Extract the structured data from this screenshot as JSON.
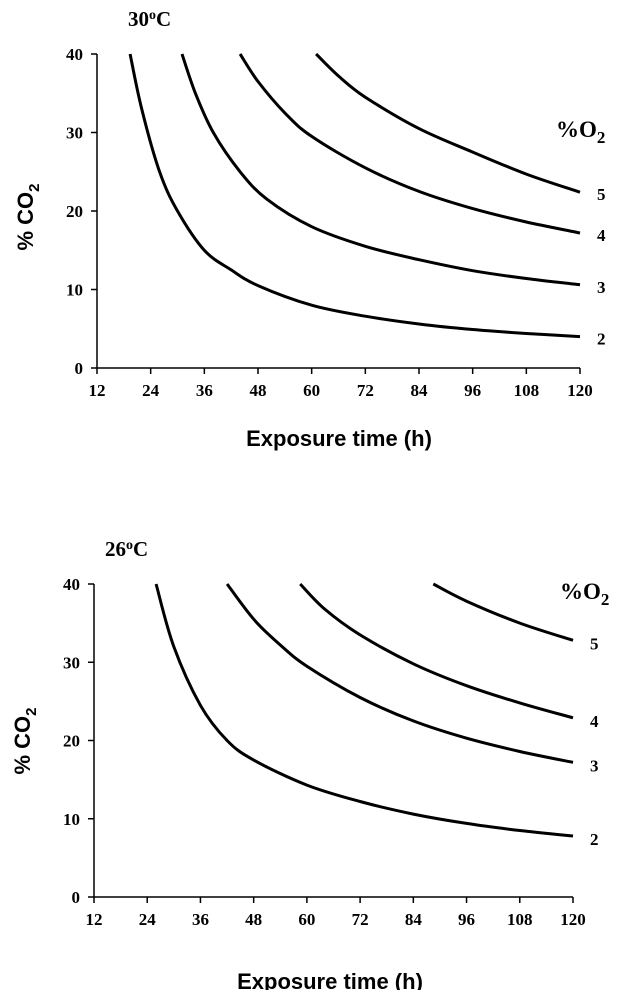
{
  "chart_data": [
    {
      "type": "line",
      "title": "30oC",
      "temperature_label": {
        "main": "30",
        "sup": "o",
        "unit": "C"
      },
      "xlabel": "Exposure time (h)",
      "ylabel": {
        "main": "% CO",
        "sub": "2"
      },
      "legend_title": {
        "main": "%O",
        "sub": "2"
      },
      "xlim": [
        12,
        120
      ],
      "ylim": [
        0,
        40
      ],
      "x_ticks": [
        12,
        24,
        36,
        48,
        60,
        72,
        84,
        96,
        108,
        120
      ],
      "y_ticks": [
        0,
        10,
        20,
        30,
        40
      ],
      "series": [
        {
          "name": "2",
          "points": [
            [
              19.4,
              40
            ],
            [
              22,
              33
            ],
            [
              26,
              25
            ],
            [
              30,
              20
            ],
            [
              36,
              15
            ],
            [
              42,
              12.5
            ],
            [
              48,
              10.5
            ],
            [
              60,
              8
            ],
            [
              72,
              6.6
            ],
            [
              84,
              5.6
            ],
            [
              96,
              4.9
            ],
            [
              108,
              4.4
            ],
            [
              120,
              4
            ]
          ]
        },
        {
          "name": "3",
          "points": [
            [
              31,
              40
            ],
            [
              34,
              35
            ],
            [
              38,
              30
            ],
            [
              44,
              25
            ],
            [
              50,
              21.5
            ],
            [
              60,
              18
            ],
            [
              72,
              15.5
            ],
            [
              84,
              13.8
            ],
            [
              96,
              12.4
            ],
            [
              108,
              11.4
            ],
            [
              120,
              10.6
            ]
          ]
        },
        {
          "name": "4",
          "points": [
            [
              44,
              40
            ],
            [
              48,
              36.5
            ],
            [
              54,
              32.5
            ],
            [
              60,
              29.5
            ],
            [
              72,
              25.5
            ],
            [
              84,
              22.5
            ],
            [
              96,
              20.3
            ],
            [
              108,
              18.6
            ],
            [
              120,
              17.2
            ]
          ]
        },
        {
          "name": "5",
          "points": [
            [
              61,
              40
            ],
            [
              66,
              37.2
            ],
            [
              72,
              34.5
            ],
            [
              84,
              30.5
            ],
            [
              96,
              27.5
            ],
            [
              108,
              24.7
            ],
            [
              120,
              22.4
            ]
          ]
        }
      ]
    },
    {
      "type": "line",
      "title": "26oC",
      "temperature_label": {
        "main": "26",
        "sup": "o",
        "unit": "C"
      },
      "xlabel": "Exposure time (h)",
      "ylabel": {
        "main": "% CO",
        "sub": "2"
      },
      "legend_title": {
        "main": "%O",
        "sub": "2"
      },
      "xlim": [
        12,
        120
      ],
      "ylim": [
        0,
        40
      ],
      "x_ticks": [
        12,
        24,
        36,
        48,
        60,
        72,
        84,
        96,
        108,
        120
      ],
      "y_ticks": [
        0,
        10,
        20,
        30,
        40
      ],
      "series": [
        {
          "name": "2",
          "points": [
            [
              26,
              40
            ],
            [
              30,
              32
            ],
            [
              36,
              24.5
            ],
            [
              42,
              20
            ],
            [
              48,
              17.5
            ],
            [
              60,
              14.3
            ],
            [
              72,
              12.2
            ],
            [
              84,
              10.6
            ],
            [
              96,
              9.4
            ],
            [
              108,
              8.5
            ],
            [
              120,
              7.8
            ]
          ]
        },
        {
          "name": "3",
          "points": [
            [
              42,
              40
            ],
            [
              48,
              35.5
            ],
            [
              54,
              32.2
            ],
            [
              60,
              29.5
            ],
            [
              72,
              25.5
            ],
            [
              84,
              22.5
            ],
            [
              96,
              20.3
            ],
            [
              108,
              18.6
            ],
            [
              120,
              17.2
            ]
          ]
        },
        {
          "name": "4",
          "points": [
            [
              58.5,
              40
            ],
            [
              64,
              36.8
            ],
            [
              72,
              33.5
            ],
            [
              84,
              29.8
            ],
            [
              96,
              27
            ],
            [
              108,
              24.8
            ],
            [
              120,
              22.9
            ]
          ]
        },
        {
          "name": "5",
          "points": [
            [
              88.5,
              40
            ],
            [
              96,
              37.8
            ],
            [
              108,
              35
            ],
            [
              120,
              32.8
            ]
          ]
        }
      ]
    }
  ]
}
